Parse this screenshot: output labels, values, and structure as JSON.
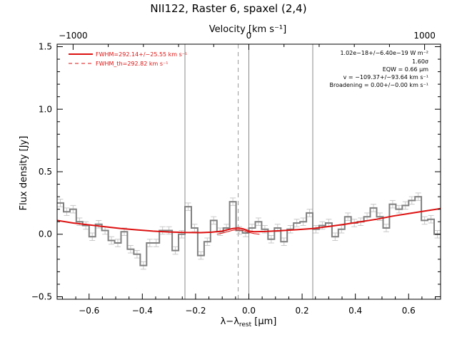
{
  "chart_data": {
    "type": "line",
    "title": "NII122, Raster 6, spaxel (2,4)",
    "xlabel_parts": [
      "λ−λ",
      "rest",
      " [μm]"
    ],
    "ylabel": "Flux density [Jy]",
    "top_axis_label": "Velocity [km s⁻¹]",
    "top_ticks": [
      "−1000",
      "0",
      "1000"
    ],
    "x_ticks": [
      "−0.6",
      "−0.4",
      "−0.2",
      "0.0",
      "0.2",
      "0.4",
      "0.6"
    ],
    "y_ticks": [
      "−0.5",
      "0.0",
      "0.5",
      "1.0",
      "1.5"
    ],
    "xlim": [
      -0.72,
      0.72
    ],
    "ylim": [
      -0.52,
      1.52
    ],
    "top_tick_positions_x": [
      -0.66,
      0.0,
      0.66
    ],
    "vlines_solid": [
      -0.24,
      0.0,
      0.24
    ],
    "vline_dashed": -0.04,
    "legend": [
      {
        "label": "FWHM=292.14+/−25.55 km s⁻¹",
        "style": "solid"
      },
      {
        "label": "FWHM_th=292.82 km s⁻¹",
        "style": "dashed"
      }
    ],
    "annotations": [
      "1.02e−18+/−6.40e−19 W m⁻²",
      "1.60σ",
      "EQW = 0.66 μm",
      "v = −109.37+/−93.64 km s⁻¹",
      "Broadening = 0.00+/−0.00 km s⁻¹"
    ],
    "step_series": {
      "name": "spectrum",
      "color": "#808080",
      "bin_width": 0.024,
      "x": [
        -0.72,
        -0.696,
        -0.672,
        -0.648,
        -0.624,
        -0.6,
        -0.576,
        -0.552,
        -0.528,
        -0.504,
        -0.48,
        -0.456,
        -0.432,
        -0.408,
        -0.384,
        -0.36,
        -0.336,
        -0.312,
        -0.288,
        -0.264,
        -0.24,
        -0.216,
        -0.192,
        -0.168,
        -0.144,
        -0.12,
        -0.096,
        -0.072,
        -0.048,
        -0.024,
        0.0,
        0.024,
        0.048,
        0.072,
        0.096,
        0.12,
        0.144,
        0.168,
        0.192,
        0.216,
        0.24,
        0.264,
        0.288,
        0.312,
        0.336,
        0.36,
        0.384,
        0.408,
        0.432,
        0.456,
        0.48,
        0.504,
        0.528,
        0.552,
        0.576,
        0.6,
        0.624,
        0.648,
        0.672,
        0.696
      ],
      "y": [
        0.25,
        0.18,
        0.2,
        0.1,
        0.07,
        -0.02,
        0.08,
        0.03,
        -0.05,
        -0.07,
        0.02,
        -0.12,
        -0.16,
        -0.25,
        -0.07,
        -0.07,
        0.03,
        0.03,
        -0.13,
        0.0,
        0.22,
        0.05,
        -0.17,
        -0.06,
        0.11,
        0.02,
        0.05,
        0.26,
        0.03,
        0.01,
        0.05,
        0.1,
        0.04,
        -0.04,
        0.05,
        -0.06,
        0.04,
        0.09,
        0.1,
        0.17,
        0.04,
        0.07,
        0.09,
        -0.02,
        0.04,
        0.14,
        0.09,
        0.1,
        0.14,
        0.21,
        0.14,
        0.05,
        0.24,
        0.2,
        0.23,
        0.27,
        0.3,
        0.11,
        0.12,
        0.0
      ],
      "err": 0.03
    },
    "fit_series": {
      "name": "fit",
      "color": "#dd1111",
      "x": [
        -0.72,
        -0.66,
        -0.6,
        -0.54,
        -0.48,
        -0.42,
        -0.36,
        -0.3,
        -0.24,
        -0.18,
        -0.14,
        -0.1,
        -0.08,
        -0.06,
        -0.04,
        -0.02,
        0.0,
        0.02,
        0.06,
        0.12,
        0.18,
        0.24,
        0.3,
        0.36,
        0.42,
        0.48,
        0.54,
        0.6,
        0.66,
        0.72
      ],
      "y": [
        0.11,
        0.09,
        0.075,
        0.06,
        0.045,
        0.035,
        0.025,
        0.018,
        0.014,
        0.013,
        0.016,
        0.025,
        0.036,
        0.046,
        0.05,
        0.042,
        0.025,
        0.02,
        0.022,
        0.028,
        0.036,
        0.046,
        0.062,
        0.08,
        0.1,
        0.12,
        0.145,
        0.165,
        0.185,
        0.205
      ]
    },
    "gaussian_series": {
      "name": "gaussian",
      "color": "#dd1111",
      "x": [
        -0.12,
        -0.1,
        -0.08,
        -0.06,
        -0.04,
        -0.02,
        0.0,
        0.02,
        0.04
      ],
      "y": [
        0.0,
        0.008,
        0.02,
        0.032,
        0.036,
        0.028,
        0.015,
        0.005,
        0.0
      ]
    }
  }
}
